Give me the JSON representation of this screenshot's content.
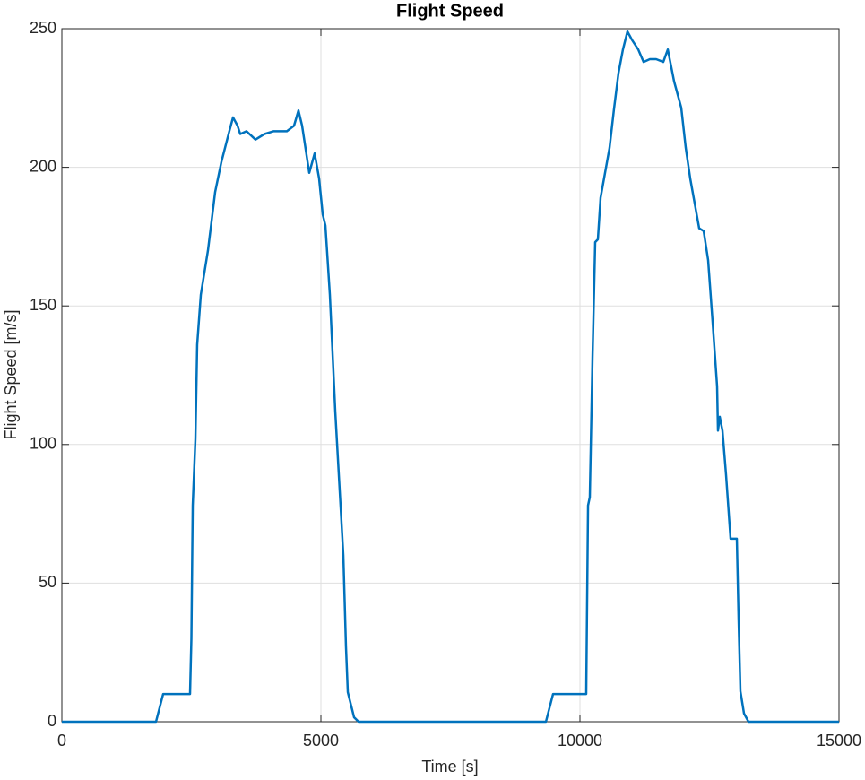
{
  "chart_data": {
    "type": "line",
    "title": "Flight Speed",
    "xlabel": "Time [s]",
    "ylabel": "Flight Speed [m/s]",
    "x": [
      0,
      1817,
      1955,
      2474,
      2500,
      2526,
      2578,
      2612,
      2682,
      2820,
      2958,
      3080,
      3218,
      3304,
      3391,
      3443,
      3564,
      3737,
      3910,
      4083,
      4343,
      4481,
      4567,
      4637,
      4775,
      4879,
      4965,
      5035,
      5087,
      5173,
      5277,
      5346,
      5433,
      5484,
      5519,
      5640,
      5727,
      9343,
      9481,
      10121,
      10156,
      10190,
      10242,
      10294,
      10346,
      10398,
      10571,
      10657,
      10744,
      10830,
      10917,
      11003,
      11125,
      11228,
      11349,
      11471,
      11609,
      11696,
      11817,
      11955,
      12042,
      12128,
      12301,
      12388,
      12474,
      12561,
      12647,
      12664,
      12699,
      12751,
      12820,
      12907,
      13028,
      13062,
      13097,
      13166,
      13253,
      15000
    ],
    "series": [
      {
        "color": "#0072bd",
        "values": [
          0,
          0,
          10,
          10,
          30,
          78,
          102,
          136,
          154,
          170,
          191,
          202,
          212,
          218,
          215,
          212,
          213,
          210,
          212,
          213,
          213,
          215,
          220.5,
          215,
          198,
          205,
          196,
          183,
          179,
          154,
          112,
          89,
          60,
          27,
          10.7,
          1.6,
          0,
          0,
          10,
          10,
          78,
          81,
          131,
          173,
          174,
          189,
          207,
          221,
          234,
          242.5,
          249,
          246,
          242.5,
          238,
          239,
          239,
          238,
          242.5,
          231,
          221.5,
          207,
          196,
          178,
          177,
          166.5,
          144,
          121,
          105,
          110,
          105,
          89,
          66,
          66,
          37,
          11,
          3,
          0,
          0
        ]
      }
    ],
    "xlim": [
      0,
      15000
    ],
    "xticks": [
      0,
      5000,
      10000,
      15000
    ],
    "ylim": [
      0,
      250
    ],
    "yticks": [
      0,
      50,
      100,
      150,
      200,
      250
    ],
    "grid": true
  }
}
